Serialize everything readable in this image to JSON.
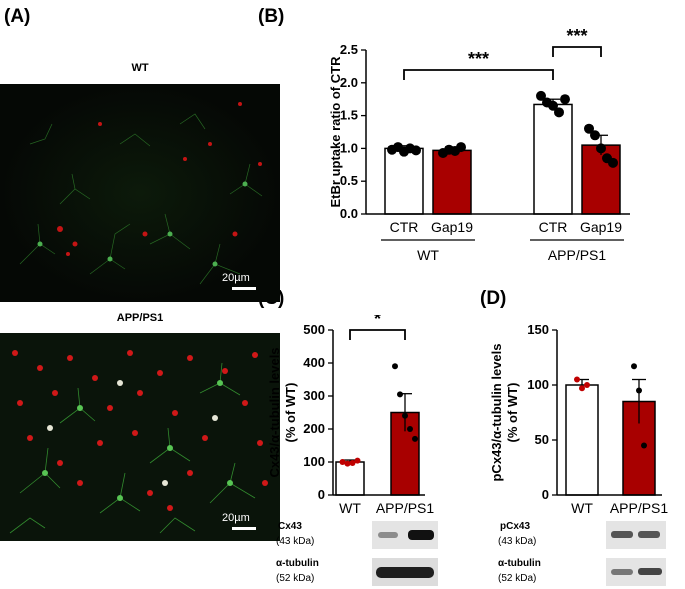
{
  "panels": {
    "a": "(A)",
    "b": "(B)",
    "c": "(C)",
    "d": "(D)"
  },
  "micrographs": {
    "top_label": "WT",
    "bottom_label": "APP/PS1",
    "scale_top": "20µm",
    "scale_bottom": "20µm"
  },
  "blots": {
    "c": [
      {
        "name": "Cx43",
        "kda": "(43 kDa)"
      },
      {
        "name": "α-tubulin",
        "kda": "(52 kDa)"
      }
    ],
    "d": [
      {
        "name": "pCx43",
        "kda": "(43 kDa)"
      },
      {
        "name": "α-tubulin",
        "kda": "(52 kDa)"
      }
    ]
  },
  "colors": {
    "red_bar": "#a80000",
    "white_bar": "#ffffff",
    "outline": "#000000",
    "dot": "#000000",
    "red_dot": "#c00000"
  },
  "chart_data": [
    {
      "panel": "B",
      "type": "bar",
      "ylabel": "EtBr uptake ratio of CTR",
      "ylim": [
        0,
        2.5
      ],
      "yticks": [
        "0.0",
        "0.5",
        "1.0",
        "1.5",
        "2.0",
        "2.5"
      ],
      "categories": [
        "CTR",
        "Gap19",
        "CTR",
        "Gap19"
      ],
      "groups": [
        "WT",
        "APP/PS1"
      ],
      "values": [
        1.0,
        0.97,
        1.67,
        1.05
      ],
      "errors": [
        0.04,
        0.05,
        0.08,
        0.15
      ],
      "points": [
        [
          0.98,
          1.02,
          0.95,
          1.0,
          0.97
        ],
        [
          0.93,
          0.98,
          0.96,
          1.02
        ],
        [
          1.8,
          1.7,
          1.65,
          1.55,
          1.75
        ],
        [
          1.3,
          1.2,
          1.0,
          0.85,
          0.78
        ]
      ],
      "significance": [
        {
          "from": 0,
          "to": 2,
          "label": "***"
        },
        {
          "from": 2,
          "to": 3,
          "label": "***"
        }
      ]
    },
    {
      "panel": "C",
      "type": "bar",
      "ylabel": "Cx43/α-tubulin levels\n(% of WT)",
      "ylabel_lines": [
        "Cx43/α-tubulin levels",
        "(% of WT)"
      ],
      "ylim": [
        0,
        500
      ],
      "yticks": [
        "0",
        "100",
        "200",
        "300",
        "400",
        "500"
      ],
      "categories": [
        "WT",
        "APP/PS1"
      ],
      "values": [
        100,
        250
      ],
      "errors": [
        6,
        57
      ],
      "points": [
        [
          100,
          95,
          97,
          104
        ],
        [
          390,
          305,
          240,
          200,
          170
        ]
      ],
      "significance": [
        {
          "from": 0,
          "to": 1,
          "label": "*"
        }
      ]
    },
    {
      "panel": "D",
      "type": "bar",
      "ylabel": "pCx43/α-tubulin levels\n(% of WT)",
      "ylabel_lines": [
        "pCx43/α-tubulin levels",
        "(% of WT)"
      ],
      "ylim": [
        0,
        150
      ],
      "yticks": [
        "0",
        "50",
        "100",
        "150"
      ],
      "categories": [
        "WT",
        "APP/PS1"
      ],
      "values": [
        100,
        85
      ],
      "errors": [
        5,
        20
      ],
      "points": [
        [
          105,
          97,
          100
        ],
        [
          117,
          95,
          45
        ]
      ]
    }
  ]
}
